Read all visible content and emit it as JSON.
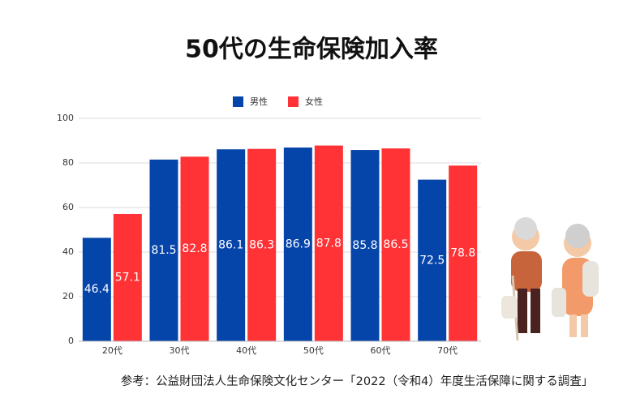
{
  "chart_data": {
    "type": "bar",
    "title": "50代の生命保険加入率",
    "categories": [
      "20代",
      "30代",
      "40代",
      "50代",
      "60代",
      "70代"
    ],
    "series": [
      {
        "name": "男性",
        "color": "#0545aa",
        "values": [
          46.4,
          81.5,
          86.1,
          86.9,
          85.8,
          72.5
        ]
      },
      {
        "name": "女性",
        "color": "#ff3235",
        "values": [
          57.1,
          82.8,
          86.3,
          87.8,
          86.5,
          78.8
        ]
      }
    ],
    "ylim": [
      0,
      100
    ],
    "yticks": [
      0,
      20,
      40,
      60,
      80,
      100
    ],
    "grid": true,
    "legend": "top",
    "source": "参考：公益財団法人生命保険文化センター「2022（令和4）年度生活保障に関する調査」"
  }
}
